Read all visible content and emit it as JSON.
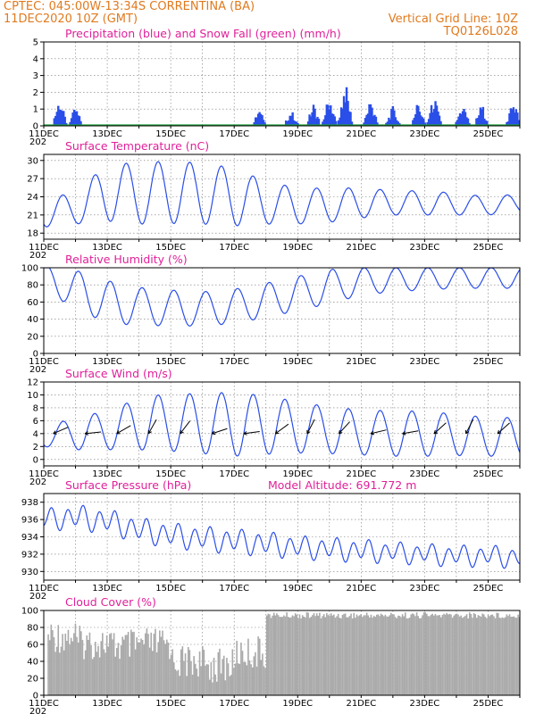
{
  "header": {
    "line1_left": "CPTEC:   045:00W-13:34S   CORRENTINA (BA)",
    "line2_left": "11DEC2020  10Z  (GMT)",
    "line2_right": "Vertical Grid Line: 10Z",
    "line3_right": "TQ0126L028"
  },
  "colors": {
    "header": "#e07a1f",
    "panel_title": "#e0209a",
    "series": "#2a4ee8",
    "snow": "#1f9f3a",
    "cloud": "#aaaaaa"
  },
  "x_tick_labels": [
    "11DEC",
    "13DEC",
    "15DEC",
    "17DEC",
    "19DEC",
    "21DEC",
    "23DEC",
    "25DEC"
  ],
  "x_year_fragment": "202",
  "chart_data": [
    {
      "type": "bar",
      "title": "Precipitation (blue) and Snow Fall (green) (mm/h)",
      "ylim": [
        0,
        5
      ],
      "yticks": [
        0,
        1,
        2,
        3,
        4,
        5
      ],
      "grid": true,
      "series": [
        {
          "name": "Precipitation",
          "events": [
            [
              0.5,
              1.8
            ],
            [
              1.0,
              1.2
            ],
            [
              6.8,
              1.3
            ],
            [
              7.8,
              1.0
            ],
            [
              8.5,
              1.4
            ],
            [
              9.0,
              2.0
            ],
            [
              9.5,
              2.8
            ],
            [
              10.3,
              1.8
            ],
            [
              11.0,
              1.2
            ],
            [
              11.8,
              1.6
            ],
            [
              12.3,
              1.9
            ],
            [
              13.2,
              1.5
            ],
            [
              13.8,
              1.4
            ],
            [
              14.8,
              1.7
            ]
          ]
        },
        {
          "name": "Snow Fall",
          "values": [
            0
          ]
        }
      ]
    },
    {
      "type": "line",
      "title": "Surface Temperature (nC)",
      "ylim": [
        17,
        31
      ],
      "yticks": [
        18,
        21,
        24,
        27,
        30
      ],
      "grid": true,
      "series": [
        {
          "mean": [
            21.5,
            22.0,
            24.8,
            24.5,
            24.8,
            24.5,
            24.0,
            23.0,
            22.5,
            22.6,
            23.0,
            23.0,
            23.0,
            22.8,
            22.5,
            23.0
          ],
          "amp": [
            2.5,
            2.5,
            4.8,
            5.0,
            5.2,
            5.0,
            4.8,
            3.5,
            3.0,
            2.8,
            2.5,
            2.0,
            2.0,
            1.8,
            1.5,
            1.5
          ]
        }
      ]
    },
    {
      "type": "line",
      "title": "Relative Humidity (%)",
      "ylim": [
        0,
        100
      ],
      "yticks": [
        0,
        20,
        40,
        60,
        80,
        100
      ],
      "grid": true,
      "series": [
        {
          "mean": [
            88,
            75,
            60,
            55,
            53,
            52,
            55,
            62,
            70,
            78,
            84,
            86,
            87,
            88,
            88,
            88
          ],
          "amp": [
            15,
            22,
            25,
            22,
            21,
            20,
            20,
            20,
            20,
            20,
            16,
            14,
            13,
            12,
            12,
            12
          ]
        }
      ]
    },
    {
      "type": "line",
      "title": "Surface Wind (m/s)",
      "ylim": [
        -1,
        12
      ],
      "yticks": [
        0,
        2,
        4,
        6,
        8,
        10,
        12
      ],
      "grid": true,
      "series": [
        {
          "mean": [
            3.5,
            4.0,
            4.5,
            5.5,
            5.8,
            5.5,
            5.5,
            5.3,
            5.0,
            4.5,
            4.2,
            4.0,
            4.0,
            3.8,
            3.5,
            3.5
          ],
          "amp": [
            1.5,
            2.5,
            3.0,
            4.0,
            4.5,
            4.6,
            5.0,
            4.5,
            4.0,
            3.6,
            3.5,
            3.5,
            3.5,
            3.2,
            3.0,
            3.0
          ]
        }
      ]
    },
    {
      "type": "line",
      "title": "Surface Pressure (hPa)",
      "annotation": "Model Altitude: 691.772 m",
      "ylim": [
        929,
        939
      ],
      "yticks": [
        930,
        932,
        934,
        936,
        938
      ],
      "grid": true,
      "series": [
        {
          "mean": [
            936.0,
            936.3,
            935.8,
            934.8,
            934.2,
            933.8,
            933.5,
            933.2,
            932.8,
            932.6,
            932.4,
            932.2,
            932.0,
            931.8,
            931.8,
            931.6
          ],
          "amp": [
            1.0,
            1.2,
            1.2,
            1.2,
            1.2,
            1.2,
            1.2,
            1.2,
            1.1,
            1.1,
            1.1,
            1.0,
            1.0,
            1.0,
            1.0,
            1.0
          ]
        }
      ]
    },
    {
      "type": "bar",
      "title": "Cloud Cover (%)",
      "ylim": [
        0,
        100
      ],
      "yticks": [
        0,
        20,
        40,
        60,
        80,
        100
      ],
      "grid": true,
      "series": [
        {
          "segments": [
            [
              0.0,
              1.0,
              90
            ],
            [
              1.0,
              2.0,
              82
            ],
            [
              2.0,
              3.0,
              78
            ],
            [
              3.0,
              4.0,
              80
            ],
            [
              4.0,
              5.0,
              60
            ],
            [
              5.0,
              6.0,
              55
            ],
            [
              6.0,
              7.0,
              70
            ],
            [
              7.0,
              8.0,
              98
            ],
            [
              8.0,
              15.0,
              98
            ]
          ]
        }
      ]
    }
  ]
}
